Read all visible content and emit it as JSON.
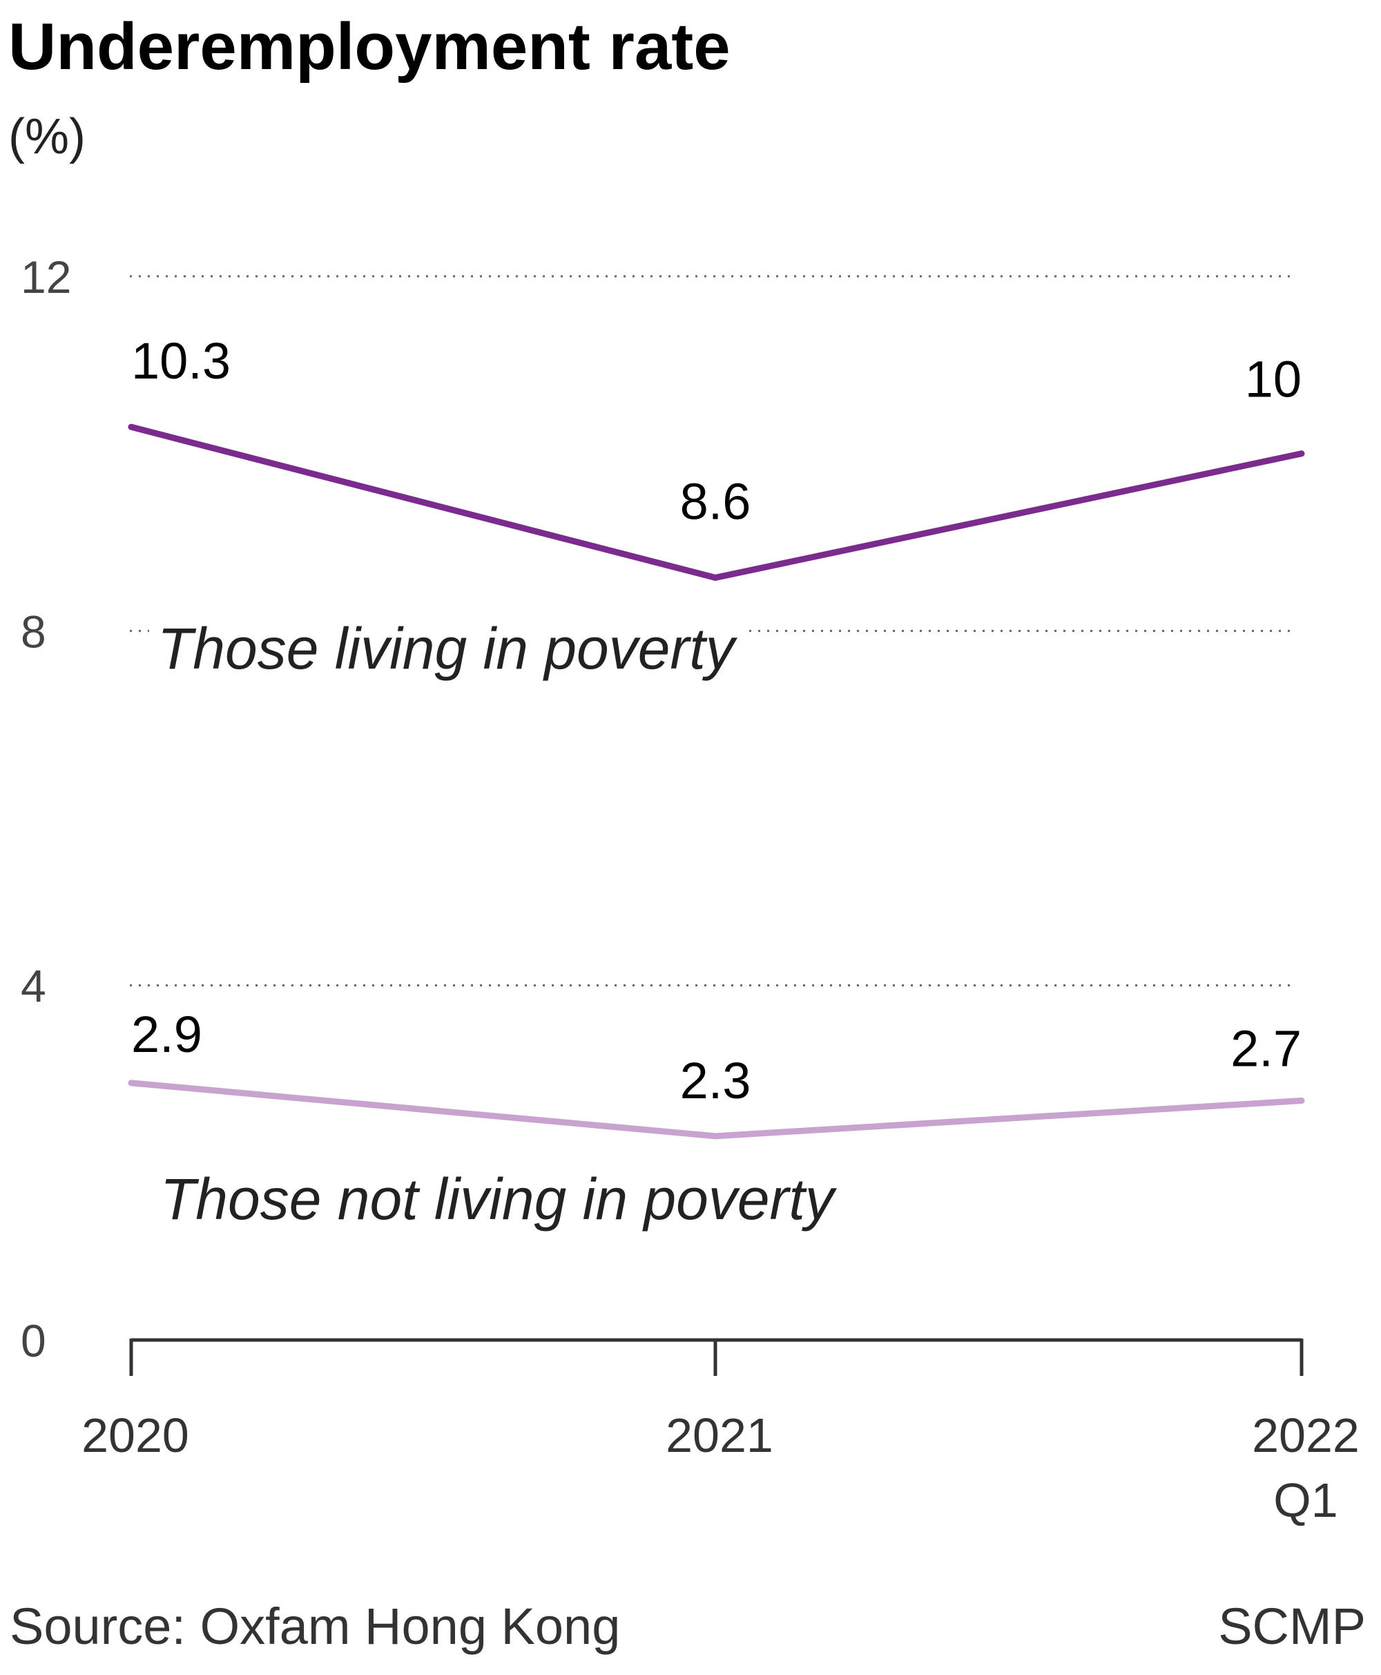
{
  "chart_data": {
    "type": "line",
    "title": "Underemployment rate",
    "ylabel": "(%)",
    "xlabel": "",
    "categories": [
      "2020",
      "2021",
      "2022 Q1"
    ],
    "category_lines": [
      [
        "2020"
      ],
      [
        "2021"
      ],
      [
        "2022",
        "Q1"
      ]
    ],
    "ylim": [
      0,
      12
    ],
    "yticks": [
      0,
      4,
      8,
      12
    ],
    "ytick_labels": [
      "0",
      "4",
      "8",
      "12"
    ],
    "grid": true,
    "series": [
      {
        "name": "Those living in poverty",
        "values": [
          10.3,
          8.6,
          10
        ],
        "value_labels": [
          "10.3",
          "8.6",
          "10"
        ],
        "color": "#7b2a8e"
      },
      {
        "name": "Those not living in poverty",
        "values": [
          2.9,
          2.3,
          2.7
        ],
        "value_labels": [
          "2.9",
          "2.3",
          "2.7"
        ],
        "color": "#c9a3cf"
      }
    ]
  },
  "footer": {
    "source": "Source: Oxfam Hong Kong",
    "credit": "SCMP"
  }
}
